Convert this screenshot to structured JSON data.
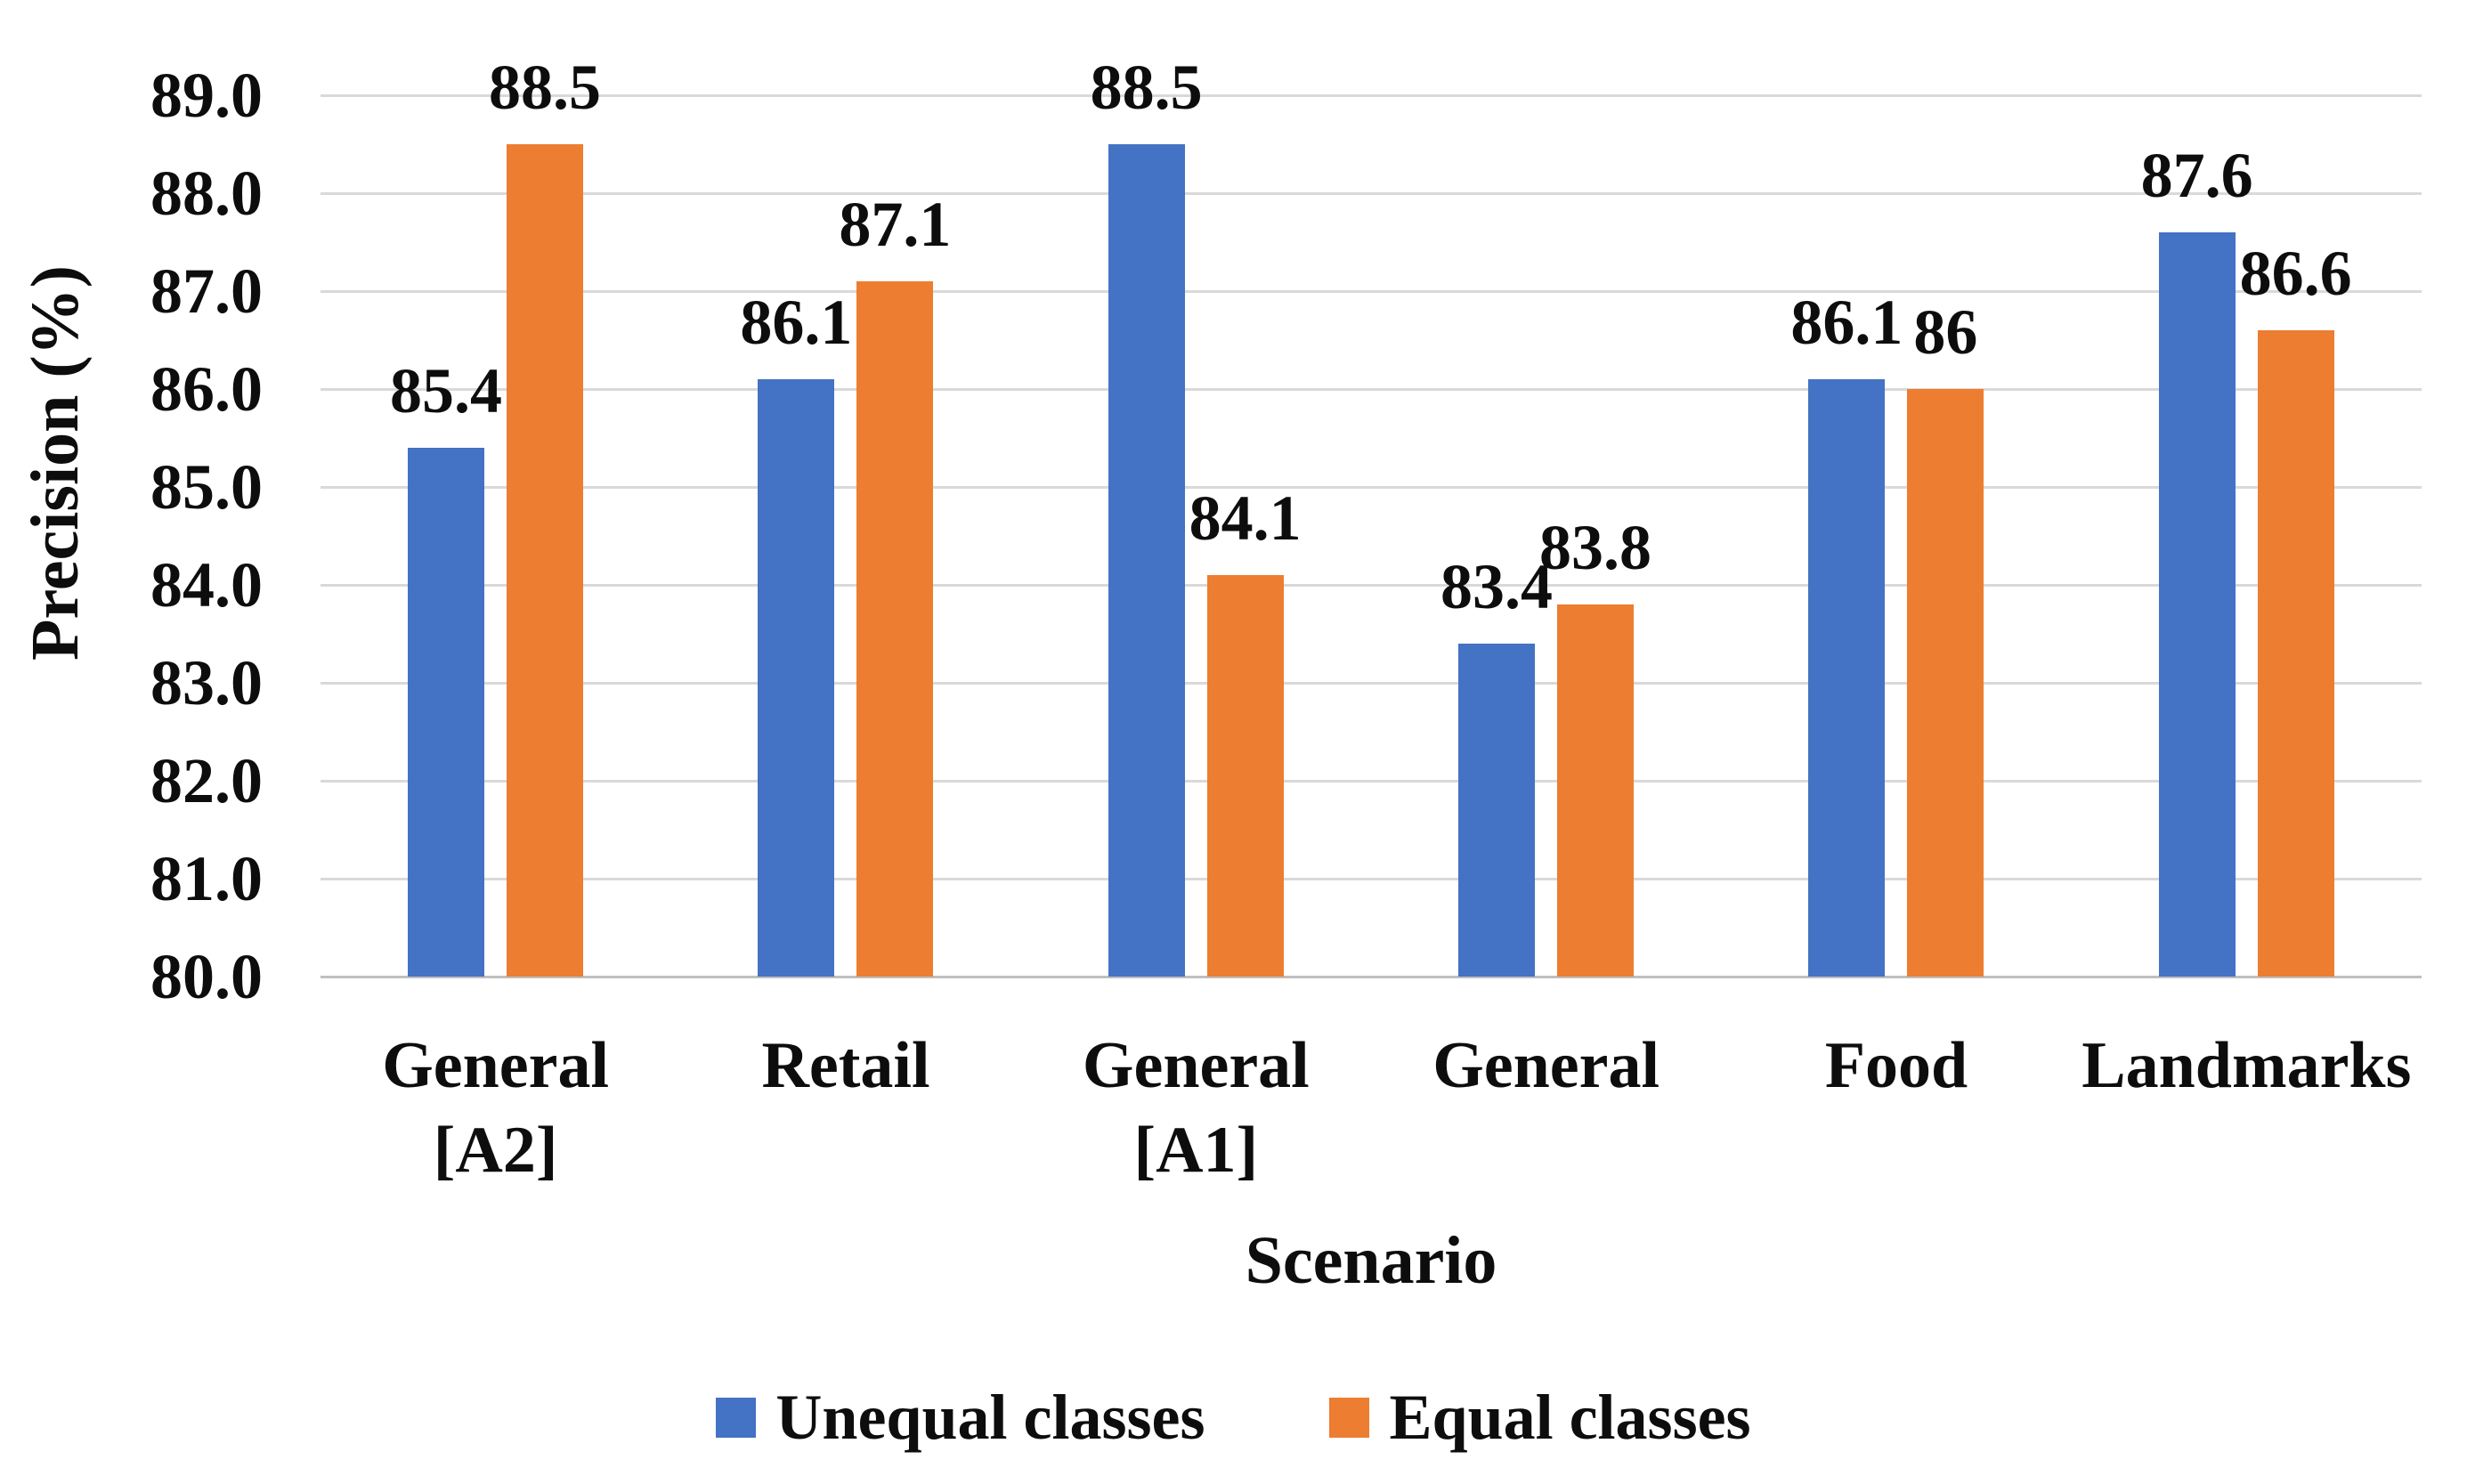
{
  "figure": {
    "background": "#ffffff",
    "text_color": "#0d0d0d"
  },
  "chart_data": {
    "type": "bar",
    "title": "",
    "xlabel": "Scenario",
    "ylabel": "Precision (%)",
    "ylim": [
      80,
      89
    ],
    "ytick_step": 1.0,
    "ytick_labels": [
      "89.0",
      "88.0",
      "87.0",
      "86.0",
      "85.0",
      "84.0",
      "83.0",
      "82.0",
      "81.0",
      "80.0"
    ],
    "grid": "horizontal",
    "gridline_color": "#d9d9d9",
    "baseline_color": "#bfbfbf",
    "legend_position": "bottom",
    "categories": [
      "General [A2]",
      "Retail",
      "General [A1]",
      "General",
      "Food",
      "Landmarks"
    ],
    "category_lines": [
      [
        "General",
        "[A2]"
      ],
      [
        "Retail"
      ],
      [
        "General",
        "[A1]"
      ],
      [
        "General"
      ],
      [
        "Food"
      ],
      [
        "Landmarks"
      ]
    ],
    "series": [
      {
        "name": "Unequal classes",
        "color": "#4472C4",
        "values": [
          85.4,
          86.1,
          88.5,
          83.4,
          86.1,
          87.6
        ],
        "labels": [
          "85.4",
          "86.1",
          "88.5",
          "83.4",
          "86.1",
          "87.6"
        ]
      },
      {
        "name": "Equal classes",
        "color": "#ED7D31",
        "values": [
          88.5,
          87.1,
          84.1,
          83.8,
          86.0,
          86.6
        ],
        "labels": [
          "88.5",
          "87.1",
          "84.1",
          "83.8",
          "86",
          "86.6"
        ]
      }
    ]
  }
}
